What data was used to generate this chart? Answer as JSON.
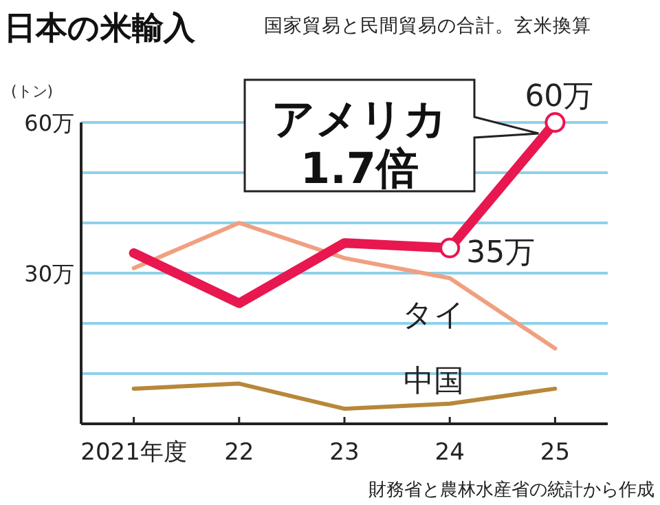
{
  "chart_data": {
    "type": "line",
    "title": "日本の米輸入",
    "subtitle": "国家貿易と民間貿易の合計。玄米換算",
    "ylabel": "(トン)",
    "categories": [
      "2021年度",
      "22",
      "23",
      "24",
      "25"
    ],
    "ylim": [
      0,
      60
    ],
    "yticks": [
      {
        "value": 10,
        "label": null
      },
      {
        "value": 20,
        "label": null
      },
      {
        "value": 30,
        "label": "30万"
      },
      {
        "value": 40,
        "label": null
      },
      {
        "value": 50,
        "label": null
      },
      {
        "value": 60,
        "label": "60万"
      }
    ],
    "grid": "y",
    "series": [
      {
        "color": "#e8174f",
        "values": [
          34,
          24,
          36,
          35,
          60
        ],
        "value_labels": [
          null,
          null,
          null,
          "35万",
          "60万"
        ]
      },
      {
        "name": "タイ",
        "color": "#f0a080",
        "values": [
          31,
          40,
          33,
          29,
          15
        ]
      },
      {
        "name": "中国",
        "color": "#b8873a",
        "values": [
          7,
          8,
          3,
          4,
          7
        ]
      }
    ],
    "annotations": [
      {
        "text": "アメリカ\n1.7倍",
        "x": "25",
        "y": 60
      },
      "財務省と農林水産省の統計から作成"
    ]
  }
}
